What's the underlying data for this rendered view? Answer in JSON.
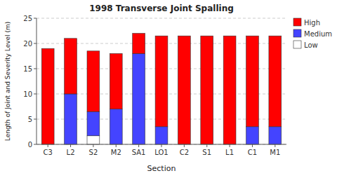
{
  "chart_data": {
    "type": "bar",
    "stacked": true,
    "title": "1998 Transverse Joint Spalling",
    "x_label": "Section",
    "y_label": "Length of Joint and Severity Level (m)",
    "categories": [
      "C3",
      "L2",
      "S2",
      "M2",
      "SA1",
      "LO1",
      "C2",
      "S1",
      "L1",
      "C1",
      "M1"
    ],
    "series": [
      {
        "name": "Low",
        "color": "#FFFFFF",
        "values": [
          0,
          0,
          1.7,
          0,
          0,
          0,
          0,
          0,
          0,
          0,
          0
        ]
      },
      {
        "name": "Medium",
        "color": "#4444FF",
        "values": [
          0,
          10,
          4.8,
          7,
          18,
          3.5,
          0,
          0,
          0,
          3.5,
          3.5
        ]
      },
      {
        "name": "High",
        "color": "#FF0000",
        "values": [
          19,
          11,
          12,
          11,
          4,
          18,
          21.5,
          21.5,
          21.5,
          18,
          18
        ]
      }
    ],
    "ylim": [
      0,
      25
    ],
    "yticks": [
      0,
      5,
      10,
      15,
      20,
      25
    ],
    "grid": true,
    "legend": "upper-right"
  }
}
